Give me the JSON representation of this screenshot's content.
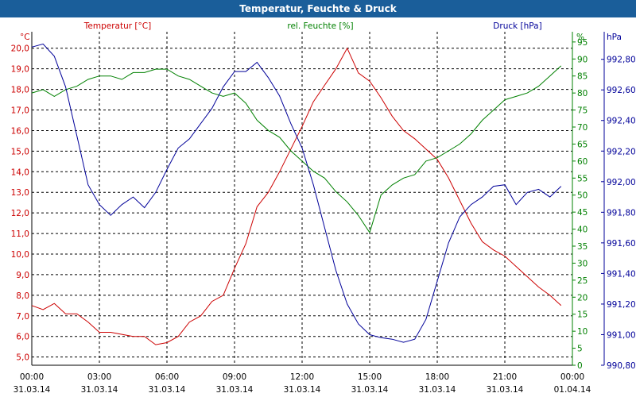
{
  "title": "Temperatur, Feuchte & Druck",
  "colors": {
    "title_bar": "#1a5e9a",
    "temperature": "#cc0000",
    "humidity": "#008000",
    "pressure": "#000099",
    "grid": "#000000",
    "axis": "#000000"
  },
  "chart_data": {
    "type": "line",
    "grid": true,
    "x_axis": {
      "range": [
        "31.03.14 00:00",
        "01.04.14 00:00"
      ],
      "ticks": [
        {
          "time": "00:00",
          "date": "31.03.14"
        },
        {
          "time": "03:00",
          "date": "31.03.14"
        },
        {
          "time": "06:00",
          "date": "31.03.14"
        },
        {
          "time": "09:00",
          "date": "31.03.14"
        },
        {
          "time": "12:00",
          "date": "31.03.14"
        },
        {
          "time": "15:00",
          "date": "31.03.14"
        },
        {
          "time": "18:00",
          "date": "31.03.14"
        },
        {
          "time": "21:00",
          "date": "31.03.14"
        },
        {
          "time": "00:00",
          "date": "01.04.14"
        }
      ]
    },
    "y_axes": {
      "temperature": {
        "label": "Temperatur [°C]",
        "unit": "°C",
        "range": [
          4.6,
          20.8
        ],
        "ticks": [
          "5,0",
          "6,0",
          "7,0",
          "8,0",
          "9,0",
          "10,0",
          "11,0",
          "12,0",
          "13,0",
          "14,0",
          "15,0",
          "16,0",
          "17,0",
          "18,0",
          "19,0",
          "20,0"
        ]
      },
      "humidity": {
        "label": "rel. Feuchte [%]",
        "unit": "%",
        "range": [
          0,
          98
        ],
        "ticks": [
          "0",
          "5",
          "10",
          "15",
          "20",
          "25",
          "30",
          "35",
          "40",
          "45",
          "50",
          "55",
          "60",
          "65",
          "70",
          "75",
          "80",
          "85",
          "90",
          "95"
        ]
      },
      "pressure": {
        "label": "Druck [hPa]",
        "unit": "hPa",
        "range": [
          990.8,
          992.98
        ],
        "ticks": [
          "990,80",
          "991,00",
          "991,20",
          "991,40",
          "991,60",
          "991,80",
          "992,00",
          "992,20",
          "992,40",
          "992,60",
          "992,80"
        ]
      }
    },
    "series": [
      {
        "name": "Temperatur [°C]",
        "axis": "temperature",
        "x": [
          "00:00",
          "00:30",
          "01:00",
          "01:30",
          "02:00",
          "02:30",
          "03:00",
          "03:30",
          "04:00",
          "04:30",
          "05:00",
          "05:30",
          "06:00",
          "06:30",
          "07:00",
          "07:30",
          "08:00",
          "08:30",
          "09:00",
          "09:30",
          "10:00",
          "10:30",
          "11:00",
          "11:30",
          "12:00",
          "12:30",
          "13:00",
          "13:30",
          "14:00",
          "14:30",
          "15:00",
          "15:30",
          "16:00",
          "16:30",
          "17:00",
          "17:30",
          "18:00",
          "18:30",
          "19:00",
          "19:30",
          "20:00",
          "20:30",
          "21:00",
          "21:30",
          "22:00",
          "22:30",
          "23:00",
          "23:30"
        ],
        "values": [
          7.5,
          7.3,
          7.6,
          7.1,
          7.1,
          6.7,
          6.2,
          6.2,
          6.1,
          6.0,
          6.0,
          5.6,
          5.7,
          6.0,
          6.7,
          7.0,
          7.7,
          8.0,
          9.3,
          10.5,
          12.3,
          13.0,
          14.0,
          15.1,
          16.2,
          17.4,
          18.2,
          19.0,
          20.0,
          18.8,
          18.4,
          17.6,
          16.7,
          16.0,
          15.6,
          15.1,
          14.6,
          13.7,
          12.6,
          11.5,
          10.6,
          10.2,
          9.9,
          9.4,
          8.9,
          8.4,
          8.0,
          7.5
        ]
      },
      {
        "name": "rel. Feuchte [%]",
        "axis": "humidity",
        "x": [
          "00:00",
          "00:30",
          "01:00",
          "01:30",
          "02:00",
          "02:30",
          "03:00",
          "03:30",
          "04:00",
          "04:30",
          "05:00",
          "05:30",
          "06:00",
          "06:30",
          "07:00",
          "07:30",
          "08:00",
          "08:30",
          "09:00",
          "09:30",
          "10:00",
          "10:30",
          "11:00",
          "11:30",
          "12:00",
          "12:30",
          "13:00",
          "13:30",
          "14:00",
          "14:30",
          "15:00",
          "15:30",
          "16:00",
          "16:30",
          "17:00",
          "17:30",
          "18:00",
          "18:30",
          "19:00",
          "19:30",
          "20:00",
          "20:30",
          "21:00",
          "21:30",
          "22:00",
          "22:30",
          "23:00",
          "23:30"
        ],
        "values": [
          80,
          81,
          79,
          81,
          82,
          84,
          85,
          85,
          84,
          86,
          86,
          87,
          87,
          85,
          84,
          82,
          80,
          79,
          80,
          77,
          72,
          69,
          67,
          63,
          60,
          57,
          55,
          51,
          48,
          44,
          39,
          50,
          53,
          55,
          56,
          60,
          61,
          63,
          65,
          68,
          72,
          75,
          78,
          79,
          80,
          82,
          85,
          88
        ]
      },
      {
        "name": "Druck [hPa]",
        "axis": "pressure",
        "x": [
          "00:00",
          "00:30",
          "01:00",
          "01:30",
          "02:00",
          "02:30",
          "03:00",
          "03:30",
          "04:00",
          "04:30",
          "05:00",
          "05:30",
          "06:00",
          "06:30",
          "07:00",
          "07:30",
          "08:00",
          "08:30",
          "09:00",
          "09:30",
          "10:00",
          "10:30",
          "11:00",
          "11:30",
          "12:00",
          "12:30",
          "13:00",
          "13:30",
          "14:00",
          "14:30",
          "15:00",
          "15:30",
          "16:00",
          "16:30",
          "17:00",
          "17:30",
          "18:00",
          "18:30",
          "19:00",
          "19:30",
          "20:00",
          "20:30",
          "21:00",
          "21:30",
          "22:00",
          "22:30",
          "23:00",
          "23:30"
        ],
        "values": [
          992.88,
          992.9,
          992.82,
          992.62,
          992.3,
          991.98,
          991.85,
          991.78,
          991.85,
          991.9,
          991.83,
          991.93,
          992.08,
          992.22,
          992.28,
          992.38,
          992.48,
          992.62,
          992.72,
          992.72,
          992.78,
          992.68,
          992.56,
          992.38,
          992.22,
          991.98,
          991.7,
          991.42,
          991.2,
          991.07,
          991.0,
          990.98,
          990.97,
          990.95,
          990.97,
          991.1,
          991.35,
          991.6,
          991.77,
          991.85,
          991.9,
          991.97,
          991.98,
          991.85,
          991.93,
          991.95,
          991.9,
          991.97
        ]
      }
    ]
  }
}
